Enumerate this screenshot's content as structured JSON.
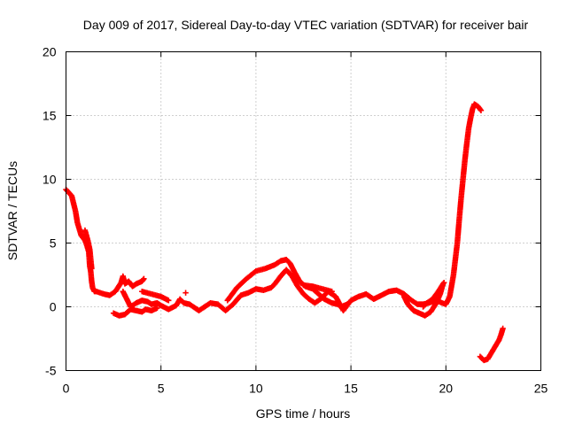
{
  "chart_data": {
    "type": "scatter",
    "title": "Day 009 of 2017, Sidereal Day-to-day VTEC variation (SDTVAR) for receiver bair",
    "xlabel": "GPS time / hours",
    "ylabel": "SDTVAR / TECUs",
    "xlim": [
      0,
      25
    ],
    "ylim": [
      -5,
      20
    ],
    "xticks": [
      "0",
      "5",
      "10",
      "15",
      "20",
      "25"
    ],
    "yticks": [
      "-5",
      "0",
      "5",
      "10",
      "15",
      "20"
    ],
    "grid": true,
    "legend": "none",
    "marker": "plus",
    "color": "#ff0000",
    "series": [
      {
        "x": [
          0.0,
          0.3,
          0.5,
          0.6,
          0.8,
          1.0,
          1.1,
          1.2,
          1.25,
          1.3,
          1.35,
          1.4,
          1.5,
          1.6,
          1.8,
          2.0,
          2.3,
          2.6,
          2.9,
          3.0,
          3.1,
          3.3,
          3.5,
          3.7,
          4.0,
          4.1
        ],
        "y": [
          9.2,
          8.7,
          7.5,
          6.6,
          5.6,
          5.2,
          4.8,
          4.3,
          3.2,
          2.8,
          2.0,
          1.5,
          1.2,
          1.2,
          1.1,
          1.0,
          0.9,
          1.2,
          1.9,
          2.4,
          1.8,
          2.0,
          1.6,
          1.8,
          2.0,
          2.2
        ]
      },
      {
        "x": [
          1.0,
          1.15,
          1.25,
          1.35
        ],
        "y": [
          6.0,
          5.2,
          4.5,
          3.0
        ]
      },
      {
        "x": [
          3.0,
          3.2,
          3.4,
          3.7,
          4.0,
          4.3,
          4.5,
          4.8,
          5.0,
          5.4,
          5.8,
          6.0,
          6.2,
          6.5,
          6.8,
          7.0,
          7.3,
          7.6,
          8.0,
          8.4,
          8.8,
          9.2,
          9.6,
          10.0,
          10.4,
          10.8,
          11.0,
          11.3,
          11.6,
          11.9,
          12.2,
          12.5,
          12.8,
          13.1,
          13.4,
          13.8,
          14.2,
          14.6,
          15.0,
          15.4,
          15.8,
          16.2,
          16.6,
          17.0,
          17.4,
          17.8,
          18.2,
          18.5,
          18.8,
          19.1,
          19.5,
          19.8,
          20.0,
          20.2,
          20.4,
          20.6,
          20.7,
          20.8,
          20.9,
          21.0,
          21.1,
          21.2,
          21.3,
          21.4,
          21.5,
          21.7,
          21.85
        ],
        "y": [
          1.2,
          0.6,
          0.0,
          0.3,
          0.5,
          0.4,
          0.2,
          0.3,
          0.1,
          -0.2,
          0.1,
          0.6,
          0.3,
          0.2,
          -0.1,
          -0.3,
          0.0,
          0.3,
          0.2,
          -0.3,
          0.2,
          0.9,
          1.1,
          1.4,
          1.3,
          1.5,
          1.8,
          2.4,
          2.9,
          2.4,
          1.6,
          1.0,
          0.6,
          0.3,
          0.6,
          1.2,
          0.8,
          -0.3,
          0.5,
          0.8,
          1.0,
          0.6,
          0.9,
          1.2,
          1.3,
          1.0,
          0.5,
          0.2,
          0.2,
          0.3,
          0.5,
          0.3,
          0.2,
          0.8,
          2.5,
          5.0,
          6.8,
          8.5,
          10.0,
          11.5,
          12.8,
          14.0,
          14.8,
          15.5,
          15.9,
          15.7,
          15.4
        ]
      },
      {
        "x": [
          2.5,
          2.8,
          3.1,
          3.4,
          3.7,
          4.0,
          4.2,
          4.5,
          4.8
        ],
        "y": [
          -0.5,
          -0.7,
          -0.6,
          -0.2,
          -0.3,
          -0.4,
          -0.2,
          -0.3,
          -0.1
        ]
      },
      {
        "x": [
          4.0,
          4.5,
          5.0,
          5.4
        ],
        "y": [
          1.2,
          1.0,
          0.8,
          0.5
        ]
      },
      {
        "x": [
          6.3
        ],
        "y": [
          1.1
        ]
      },
      {
        "x": [
          8.5,
          9.0,
          9.5,
          10.0,
          10.5,
          11.0,
          11.3,
          11.6,
          11.8,
          12.0,
          12.3,
          12.6,
          13.0,
          13.3,
          13.6,
          14.0,
          14.3,
          14.5,
          14.8
        ],
        "y": [
          0.5,
          1.5,
          2.2,
          2.8,
          3.0,
          3.3,
          3.6,
          3.7,
          3.4,
          2.8,
          2.0,
          1.6,
          1.4,
          1.0,
          0.6,
          0.3,
          0.2,
          0.0,
          0.2
        ]
      },
      {
        "x": [
          12.5,
          13.0,
          13.5,
          14.0
        ],
        "y": [
          1.7,
          1.6,
          1.4,
          1.2
        ]
      },
      {
        "x": [
          17.8,
          18.0,
          18.3,
          18.6,
          18.9,
          19.2,
          19.5,
          19.7,
          19.85
        ],
        "y": [
          0.8,
          0.2,
          -0.3,
          -0.5,
          -0.7,
          -0.4,
          0.3,
          1.0,
          1.8
        ]
      },
      {
        "x": [
          18.8,
          19.0,
          19.3,
          19.6,
          19.9
        ],
        "y": [
          0.0,
          0.3,
          0.6,
          1.2,
          1.9
        ]
      },
      {
        "x": [
          21.8,
          22.0,
          22.2,
          22.4,
          22.6,
          22.8,
          22.9,
          23.0
        ],
        "y": [
          -3.9,
          -4.2,
          -4.1,
          -3.6,
          -3.1,
          -2.6,
          -2.2,
          -1.7
        ]
      }
    ]
  }
}
